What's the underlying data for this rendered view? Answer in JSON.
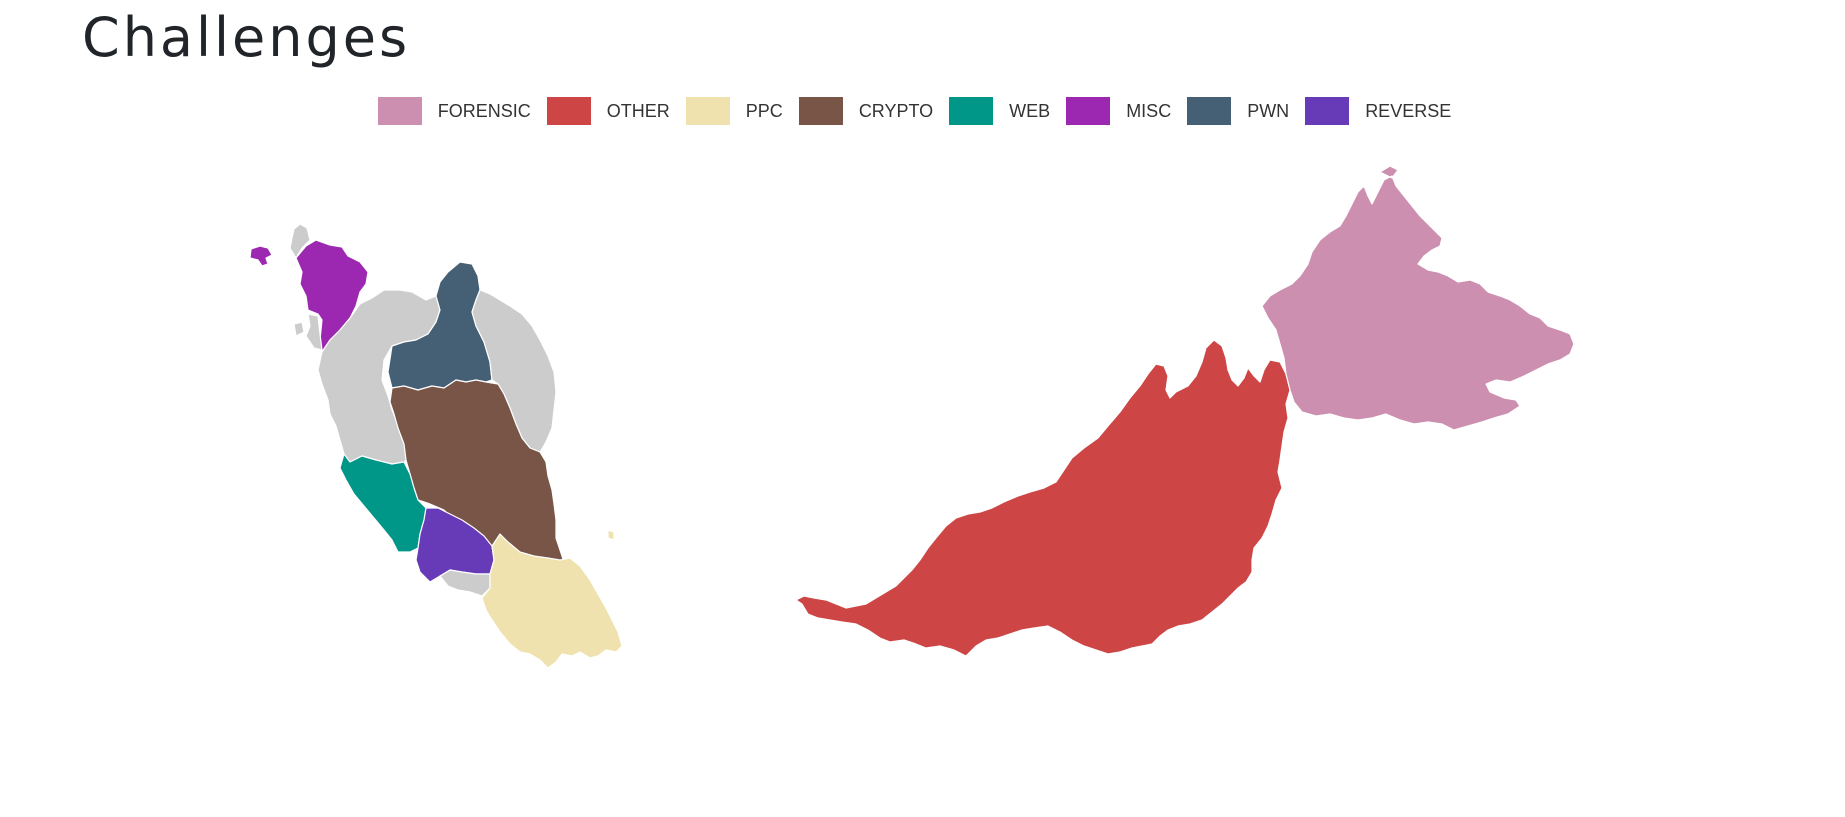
{
  "page": {
    "title": "Challenges"
  },
  "legend": [
    {
      "label": "FORENSIC",
      "color": "#cc8faf"
    },
    {
      "label": "OTHER",
      "color": "#cd4545"
    },
    {
      "label": "PPC",
      "color": "#efe2ae"
    },
    {
      "label": "CRYPTO",
      "color": "#795548"
    },
    {
      "label": "WEB",
      "color": "#009688"
    },
    {
      "label": "MISC",
      "color": "#9c27b0"
    },
    {
      "label": "PWN",
      "color": "#455f74"
    },
    {
      "label": "REVERSE",
      "color": "#673ab7"
    }
  ],
  "map": {
    "unassigned_color": "#cccccc",
    "regions": [
      {
        "id": "perlis",
        "category": ""
      },
      {
        "id": "langkawi",
        "category": "MISC"
      },
      {
        "id": "kedah",
        "category": "MISC"
      },
      {
        "id": "penang",
        "category": ""
      },
      {
        "id": "perak",
        "category": ""
      },
      {
        "id": "kelantan",
        "category": "PWN"
      },
      {
        "id": "terengganu",
        "category": ""
      },
      {
        "id": "pahang",
        "category": "CRYPTO"
      },
      {
        "id": "selangor",
        "category": "WEB"
      },
      {
        "id": "negeri-sembilan",
        "category": "REVERSE"
      },
      {
        "id": "melaka",
        "category": ""
      },
      {
        "id": "johor",
        "category": "PPC"
      },
      {
        "id": "sarawak",
        "category": "OTHER"
      },
      {
        "id": "sabah",
        "category": "FORENSIC"
      }
    ]
  }
}
